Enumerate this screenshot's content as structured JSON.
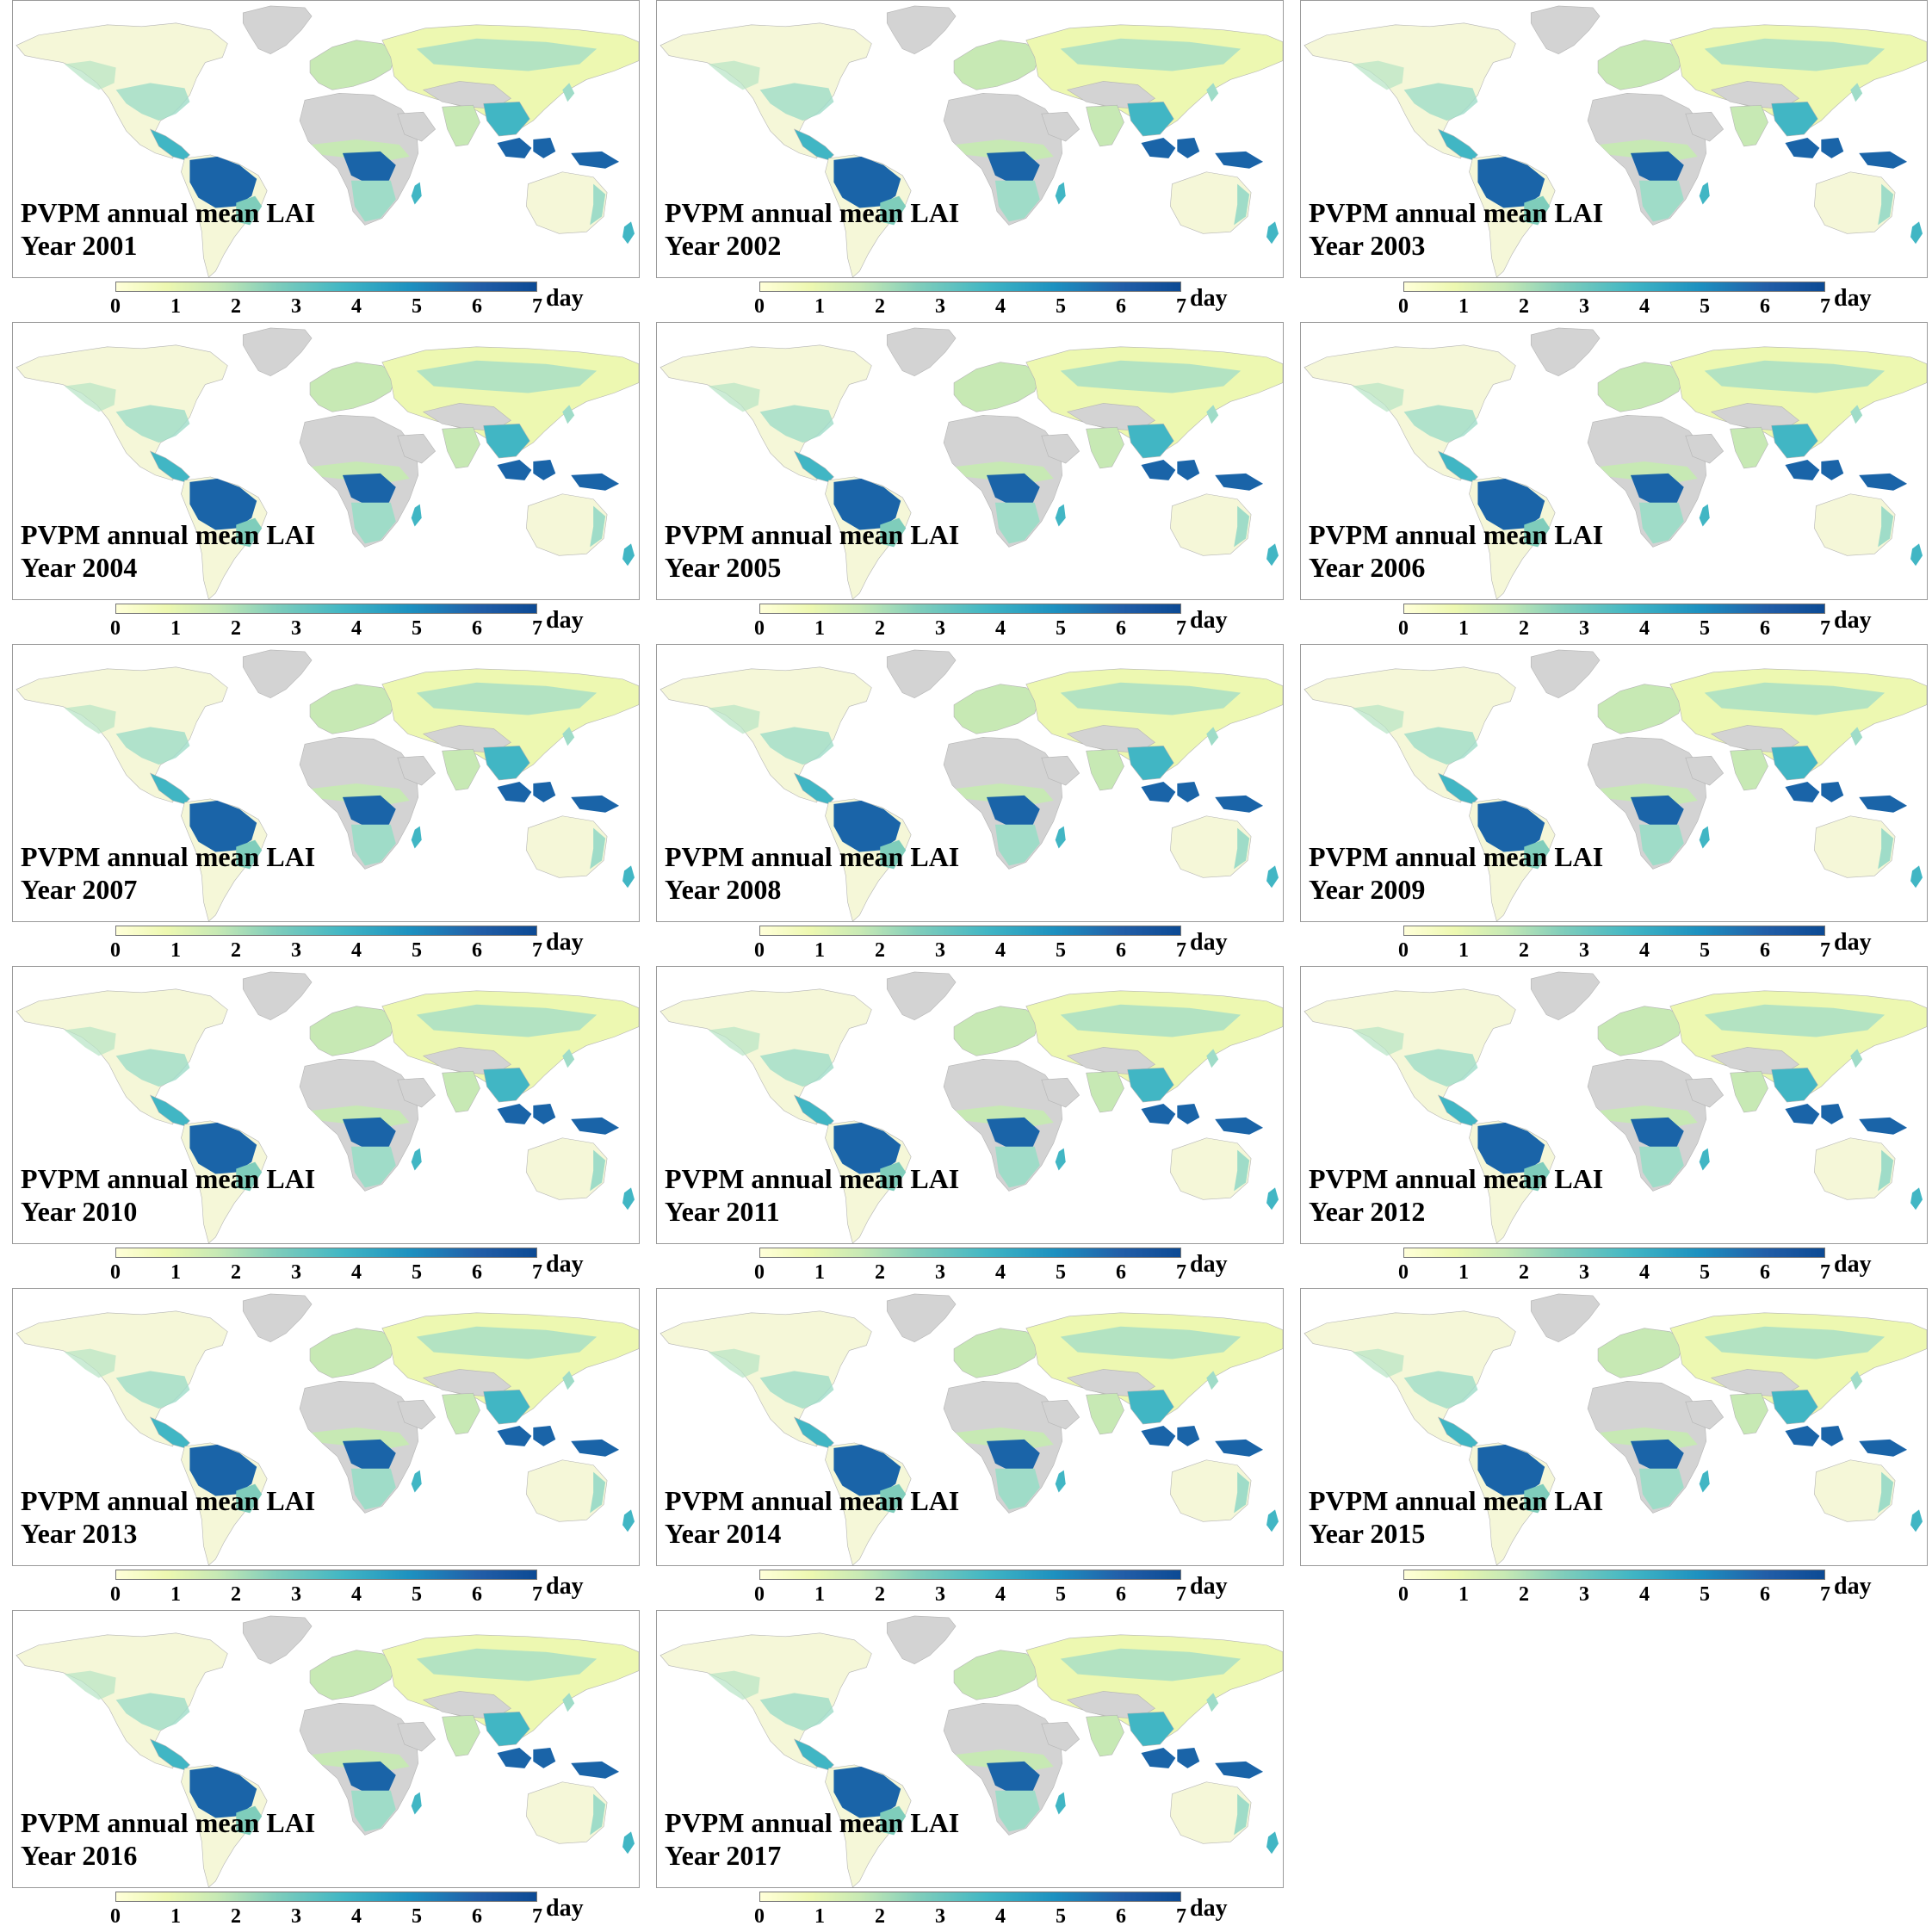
{
  "title_line1": "PVPM annual mean LAI",
  "panels": [
    {
      "year_label": "Year 2001"
    },
    {
      "year_label": "Year 2002"
    },
    {
      "year_label": "Year 2003"
    },
    {
      "year_label": "Year 2004"
    },
    {
      "year_label": "Year 2005"
    },
    {
      "year_label": "Year 2006"
    },
    {
      "year_label": "Year 2007"
    },
    {
      "year_label": "Year 2008"
    },
    {
      "year_label": "Year 2009"
    },
    {
      "year_label": "Year 2010"
    },
    {
      "year_label": "Year 2011"
    },
    {
      "year_label": "Year 2012"
    },
    {
      "year_label": "Year 2013"
    },
    {
      "year_label": "Year 2014"
    },
    {
      "year_label": "Year 2015"
    },
    {
      "year_label": "Year 2016"
    },
    {
      "year_label": "Year 2017"
    }
  ],
  "colorbar": {
    "ticks": [
      "0",
      "1",
      "2",
      "3",
      "4",
      "5",
      "6",
      "7"
    ],
    "unit": "day",
    "min": 0,
    "max": 7,
    "colors": [
      "#ffffd9",
      "#edf8b1",
      "#c7e9b4",
      "#7fcdbb",
      "#41b6c4",
      "#1d91c0",
      "#225ea8",
      "#0c4a94"
    ]
  },
  "map_colors": {
    "no_data_land": "#d3d3d3",
    "low": "#f5f7d8",
    "mid": "#9fdcc8",
    "high": "#41b6c4",
    "very_high": "#1a64a8",
    "boundary": "#b4b4b4"
  }
}
